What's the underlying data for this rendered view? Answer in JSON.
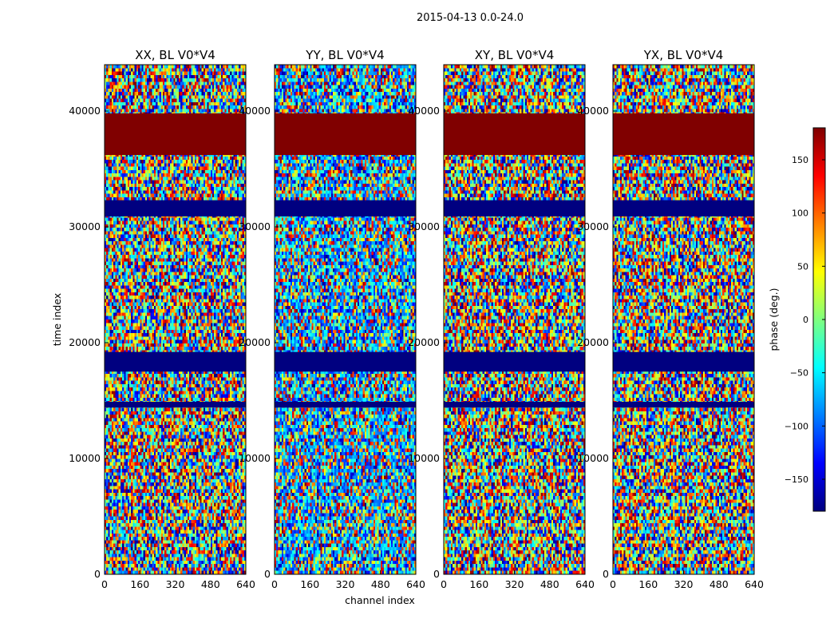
{
  "chart_data": {
    "type": "heatmap",
    "suptitle": "2015-04-13 0.0-24.0",
    "xlabel": "channel index",
    "ylabel": "time index",
    "xlim": [
      0,
      640
    ],
    "ylim": [
      0,
      44000
    ],
    "xticks": [
      0,
      160,
      320,
      480,
      640
    ],
    "yticks": [
      0,
      10000,
      20000,
      30000,
      40000
    ],
    "panels": [
      {
        "title": "XX, BL V0*V4"
      },
      {
        "title": "YY, BL V0*V4"
      },
      {
        "title": "XY, BL V0*V4"
      },
      {
        "title": "YX, BL V0*V4"
      }
    ],
    "colorbar": {
      "label": "phase (deg.)",
      "range": [
        -180,
        180
      ],
      "ticks": [
        -150,
        -100,
        -50,
        0,
        50,
        100,
        150
      ],
      "tick_labels": [
        "−150",
        "−100",
        "−50",
        "0",
        "50",
        "100",
        "150"
      ],
      "colormap": "jet"
    },
    "bands": [
      {
        "y_from": 36200,
        "y_to": 39800,
        "phase": 180,
        "label": "saturated positive phase"
      },
      {
        "y_from": 30900,
        "y_to": 32300,
        "phase": -180,
        "label": "saturated negative phase"
      },
      {
        "y_from": 17500,
        "y_to": 19200,
        "phase": -180,
        "label": "saturated negative phase"
      },
      {
        "y_from": 14400,
        "y_to": 14900,
        "phase": -180,
        "label": "saturated negative phase"
      }
    ]
  }
}
